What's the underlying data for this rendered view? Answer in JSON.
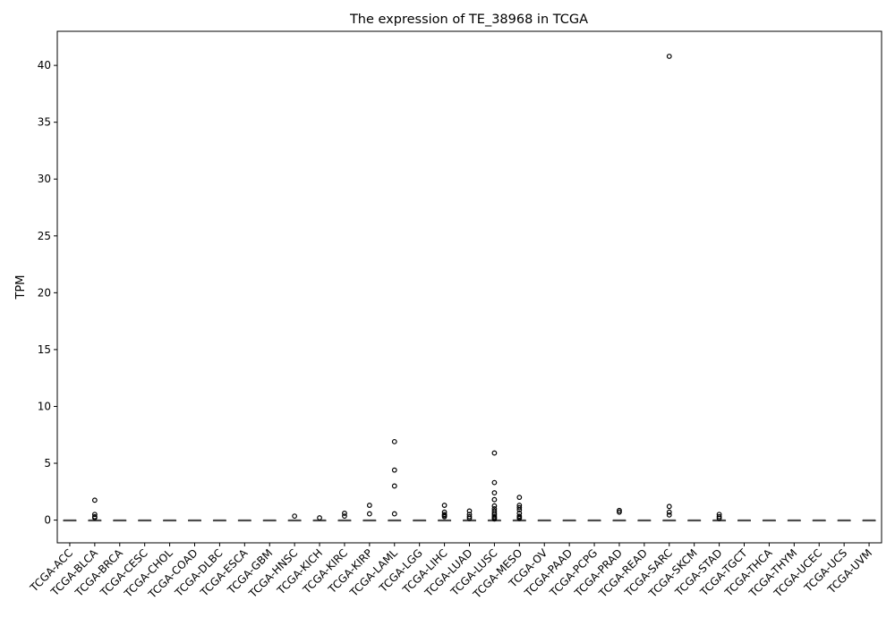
{
  "chart_data": {
    "type": "box",
    "title": "The expression of TE_38968 in TCGA",
    "xlabel": "",
    "ylabel": "TPM",
    "ylim": [
      -2,
      43
    ],
    "yticks": [
      0,
      5,
      10,
      15,
      20,
      25,
      30,
      35,
      40
    ],
    "grid": false,
    "legend": "none",
    "colors": {
      "box": "#4c4c4c",
      "outlier_edge": "#000000",
      "axes": "#000000"
    },
    "categories": [
      "TCGA-ACC",
      "TCGA-BLCA",
      "TCGA-BRCA",
      "TCGA-CESC",
      "TCGA-CHOL",
      "TCGA-COAD",
      "TCGA-DLBC",
      "TCGA-ESCA",
      "TCGA-GBM",
      "TCGA-HNSC",
      "TCGA-KICH",
      "TCGA-KIRC",
      "TCGA-KIRP",
      "TCGA-LAML",
      "TCGA-LGG",
      "TCGA-LIHC",
      "TCGA-LUAD",
      "TCGA-LUSC",
      "TCGA-MESO",
      "TCGA-OV",
      "TCGA-PAAD",
      "TCGA-PCPG",
      "TCGA-PRAD",
      "TCGA-READ",
      "TCGA-SARC",
      "TCGA-SKCM",
      "TCGA-STAD",
      "TCGA-TGCT",
      "TCGA-THCA",
      "TCGA-THYM",
      "TCGA-UCEC",
      "TCGA-UCS",
      "TCGA-UVM"
    ],
    "boxes": [
      {
        "median": 0,
        "q1": 0,
        "q3": 0,
        "whisker_low": 0,
        "whisker_high": 0,
        "outliers": []
      },
      {
        "median": 0,
        "q1": 0,
        "q3": 0,
        "whisker_low": 0,
        "whisker_high": 0,
        "outliers": [
          1.75,
          0.5,
          0.3,
          0.2
        ]
      },
      {
        "median": 0,
        "q1": 0,
        "q3": 0,
        "whisker_low": 0,
        "whisker_high": 0,
        "outliers": []
      },
      {
        "median": 0,
        "q1": 0,
        "q3": 0,
        "whisker_low": 0,
        "whisker_high": 0,
        "outliers": []
      },
      {
        "median": 0,
        "q1": 0,
        "q3": 0,
        "whisker_low": 0,
        "whisker_high": 0,
        "outliers": []
      },
      {
        "median": 0,
        "q1": 0,
        "q3": 0,
        "whisker_low": 0,
        "whisker_high": 0,
        "outliers": []
      },
      {
        "median": 0,
        "q1": 0,
        "q3": 0,
        "whisker_low": 0,
        "whisker_high": 0,
        "outliers": []
      },
      {
        "median": 0,
        "q1": 0,
        "q3": 0,
        "whisker_low": 0,
        "whisker_high": 0,
        "outliers": []
      },
      {
        "median": 0,
        "q1": 0,
        "q3": 0,
        "whisker_low": 0,
        "whisker_high": 0,
        "outliers": []
      },
      {
        "median": 0,
        "q1": 0,
        "q3": 0,
        "whisker_low": 0,
        "whisker_high": 0,
        "outliers": [
          0.35
        ]
      },
      {
        "median": 0,
        "q1": 0,
        "q3": 0,
        "whisker_low": 0,
        "whisker_high": 0,
        "outliers": [
          0.2
        ]
      },
      {
        "median": 0,
        "q1": 0,
        "q3": 0,
        "whisker_low": 0,
        "whisker_high": 0,
        "outliers": [
          0.6,
          0.35
        ]
      },
      {
        "median": 0,
        "q1": 0,
        "q3": 0,
        "whisker_low": 0,
        "whisker_high": 0,
        "outliers": [
          1.3,
          0.55
        ]
      },
      {
        "median": 0,
        "q1": 0,
        "q3": 0,
        "whisker_low": 0,
        "whisker_high": 0,
        "outliers": [
          6.9,
          4.4,
          3.0,
          0.55
        ]
      },
      {
        "median": 0,
        "q1": 0,
        "q3": 0,
        "whisker_low": 0,
        "whisker_high": 0,
        "outliers": []
      },
      {
        "median": 0,
        "q1": 0,
        "q3": 0,
        "whisker_low": 0,
        "whisker_high": 0,
        "outliers": [
          1.3,
          0.7,
          0.5,
          0.4,
          0.3
        ]
      },
      {
        "median": 0,
        "q1": 0,
        "q3": 0,
        "whisker_low": 0,
        "whisker_high": 0,
        "outliers": [
          0.8,
          0.5,
          0.3,
          0.15
        ]
      },
      {
        "median": 0,
        "q1": 0,
        "q3": 0,
        "whisker_low": 0,
        "whisker_high": 0,
        "outliers": [
          5.9,
          3.3,
          2.4,
          1.8,
          1.25,
          1.0,
          0.8,
          0.6,
          0.45,
          0.3,
          0.2,
          0.1
        ]
      },
      {
        "median": 0,
        "q1": 0,
        "q3": 0,
        "whisker_low": 0,
        "whisker_high": 0,
        "outliers": [
          2.0,
          1.3,
          1.1,
          0.9,
          0.6,
          0.35,
          0.25,
          0.15
        ]
      },
      {
        "median": 0,
        "q1": 0,
        "q3": 0,
        "whisker_low": 0,
        "whisker_high": 0,
        "outliers": []
      },
      {
        "median": 0,
        "q1": 0,
        "q3": 0,
        "whisker_low": 0,
        "whisker_high": 0,
        "outliers": []
      },
      {
        "median": 0,
        "q1": 0,
        "q3": 0,
        "whisker_low": 0,
        "whisker_high": 0,
        "outliers": []
      },
      {
        "median": 0,
        "q1": 0,
        "q3": 0,
        "whisker_low": 0,
        "whisker_high": 0,
        "outliers": [
          0.85,
          0.7
        ]
      },
      {
        "median": 0,
        "q1": 0,
        "q3": 0,
        "whisker_low": 0,
        "whisker_high": 0,
        "outliers": []
      },
      {
        "median": 0,
        "q1": 0,
        "q3": 0,
        "whisker_low": 0,
        "whisker_high": 0,
        "outliers": [
          40.8,
          1.2,
          0.7,
          0.45
        ]
      },
      {
        "median": 0,
        "q1": 0,
        "q3": 0,
        "whisker_low": 0,
        "whisker_high": 0,
        "outliers": []
      },
      {
        "median": 0,
        "q1": 0,
        "q3": 0,
        "whisker_low": 0,
        "whisker_high": 0,
        "outliers": [
          0.5,
          0.3,
          0.15
        ]
      },
      {
        "median": 0,
        "q1": 0,
        "q3": 0,
        "whisker_low": 0,
        "whisker_high": 0,
        "outliers": []
      },
      {
        "median": 0,
        "q1": 0,
        "q3": 0,
        "whisker_low": 0,
        "whisker_high": 0,
        "outliers": []
      },
      {
        "median": 0,
        "q1": 0,
        "q3": 0,
        "whisker_low": 0,
        "whisker_high": 0,
        "outliers": []
      },
      {
        "median": 0,
        "q1": 0,
        "q3": 0,
        "whisker_low": 0,
        "whisker_high": 0,
        "outliers": []
      },
      {
        "median": 0,
        "q1": 0,
        "q3": 0,
        "whisker_low": 0,
        "whisker_high": 0,
        "outliers": []
      },
      {
        "median": 0,
        "q1": 0,
        "q3": 0,
        "whisker_low": 0,
        "whisker_high": 0,
        "outliers": []
      }
    ]
  }
}
